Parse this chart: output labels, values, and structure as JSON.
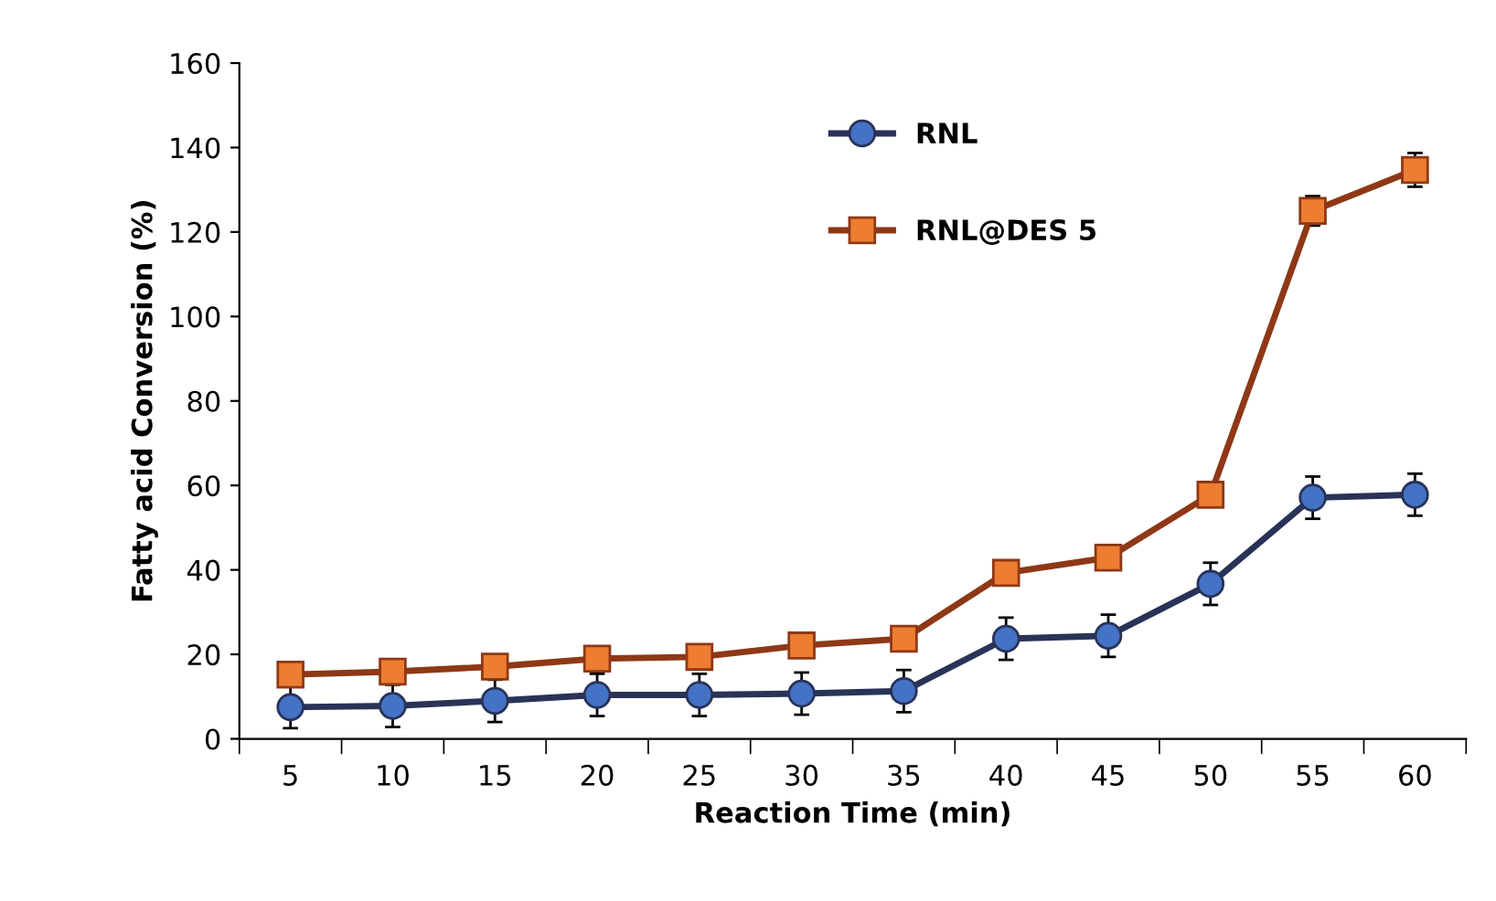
{
  "chart_data": {
    "type": "line",
    "xlabel": "Reaction Time (min)",
    "ylabel": "Fatty acid Conversion (%)",
    "categories": [
      "5",
      "10",
      "15",
      "20",
      "25",
      "30",
      "35",
      "40",
      "45",
      "50",
      "55",
      "60"
    ],
    "ylim": [
      0,
      160
    ],
    "yticks": [
      0,
      20,
      40,
      60,
      80,
      100,
      120,
      140,
      160
    ],
    "grid": false,
    "legend": "top right",
    "series": [
      {
        "name": "RNL",
        "color": "#4472c4",
        "marker": "circle",
        "values": [
          7.5,
          7.8,
          9.0,
          10.4,
          10.4,
          10.7,
          11.3,
          23.7,
          24.4,
          36.7,
          57.1,
          57.8
        ],
        "errors": [
          5,
          5,
          5,
          5,
          5,
          5,
          5,
          5,
          5,
          5,
          5,
          5
        ]
      },
      {
        "name": "RNL@DES 5",
        "color": "#ed7d31",
        "marker": "square",
        "values": [
          15.2,
          15.9,
          17.1,
          19.0,
          19.4,
          22.1,
          23.7,
          39.3,
          42.9,
          57.8,
          125.0,
          134.7
        ],
        "errors": [
          null,
          null,
          null,
          null,
          null,
          null,
          null,
          null,
          null,
          null,
          3.5,
          4
        ]
      }
    ]
  }
}
